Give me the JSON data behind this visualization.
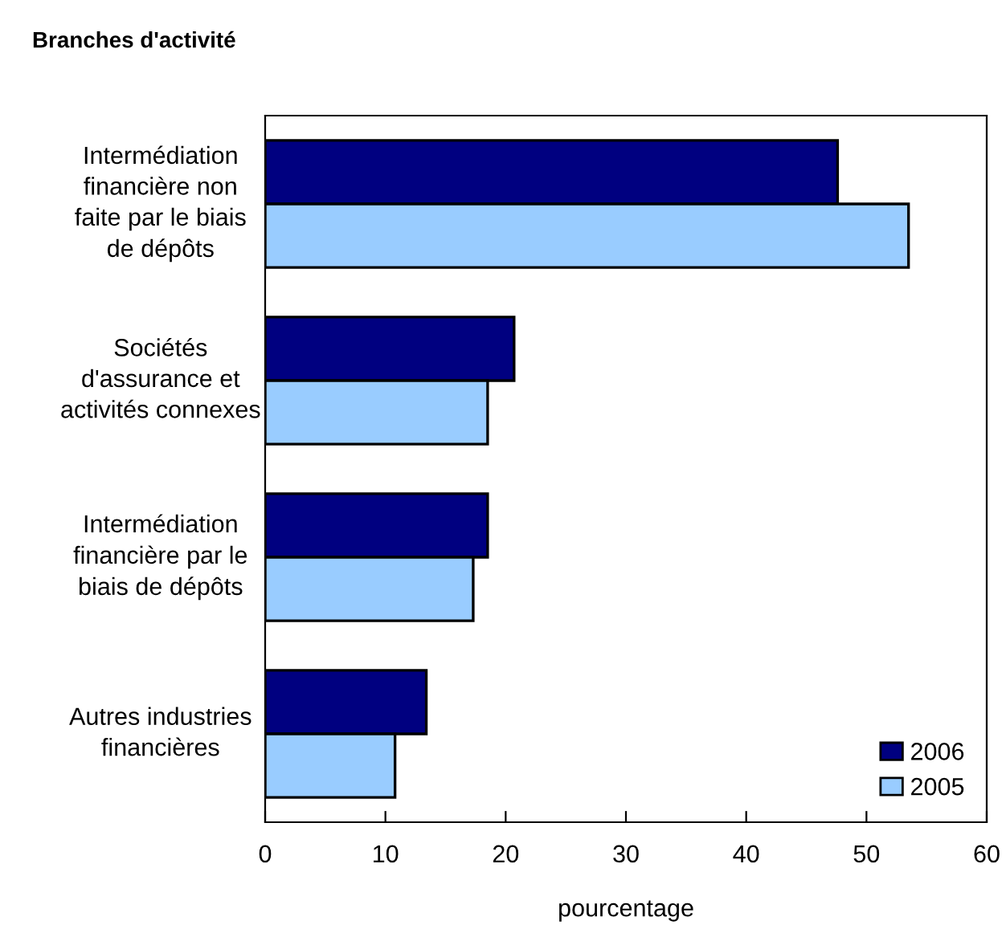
{
  "chart_data": {
    "type": "bar",
    "orientation": "horizontal",
    "title": "Branches d'activité",
    "xlabel": "pourcentage",
    "categories": [
      "Intermédiation financière non faite par le biais de dépôts",
      "Sociétés d'assurance et activités connexes",
      "Intermédiation financière par le biais de dépôts",
      "Autres industries financières"
    ],
    "series": [
      {
        "name": "2006",
        "color": "#000080",
        "values": [
          47.6,
          20.7,
          18.5,
          13.4
        ]
      },
      {
        "name": "2005",
        "color": "#99ccff",
        "values": [
          53.5,
          18.5,
          17.3,
          10.8
        ]
      }
    ],
    "xlim": [
      0,
      60
    ],
    "xticks": [
      0,
      10,
      20,
      30,
      40,
      50,
      60
    ],
    "grid": false,
    "legend": "bottom right"
  }
}
